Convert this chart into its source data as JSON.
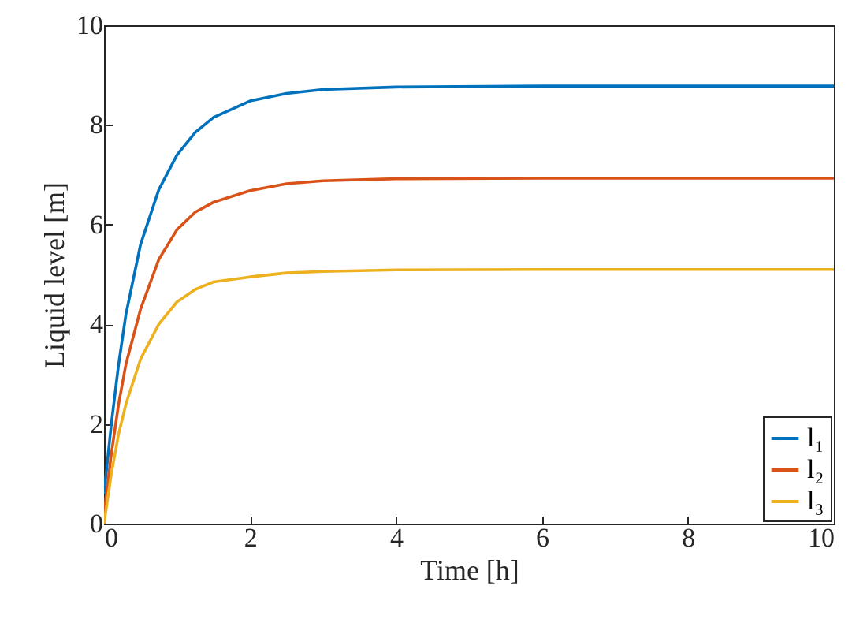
{
  "chart_data": {
    "type": "line",
    "xlabel": "Time [h]",
    "ylabel": "Liquid level [m]",
    "x": [
      0,
      0.1,
      0.2,
      0.3,
      0.5,
      0.75,
      1,
      1.25,
      1.5,
      2,
      2.5,
      3,
      4,
      6,
      10
    ],
    "series": [
      {
        "name": "l₁",
        "color": "#0072bd",
        "values": [
          0.6,
          2.0,
          3.2,
          4.2,
          5.6,
          6.7,
          7.4,
          7.85,
          8.15,
          8.48,
          8.63,
          8.71,
          8.76,
          8.78,
          8.78
        ]
      },
      {
        "name": "l₂",
        "color": "#d95319",
        "values": [
          0.2,
          1.4,
          2.4,
          3.2,
          4.3,
          5.3,
          5.9,
          6.25,
          6.45,
          6.68,
          6.82,
          6.88,
          6.92,
          6.93,
          6.93
        ]
      },
      {
        "name": "l₃",
        "color": "#edb120",
        "values": [
          0,
          1.0,
          1.8,
          2.4,
          3.3,
          4.0,
          4.45,
          4.7,
          4.85,
          4.95,
          5.03,
          5.06,
          5.09,
          5.1,
          5.1
        ]
      }
    ],
    "xlim": [
      0,
      10
    ],
    "xticks": [
      0,
      2,
      4,
      6,
      8,
      10
    ],
    "ylim": [
      0,
      10
    ],
    "yticks": [
      0,
      2,
      4,
      6,
      8,
      10
    ],
    "grid": false,
    "legend": "bottom right",
    "line_style": "solid",
    "marker": "none"
  }
}
